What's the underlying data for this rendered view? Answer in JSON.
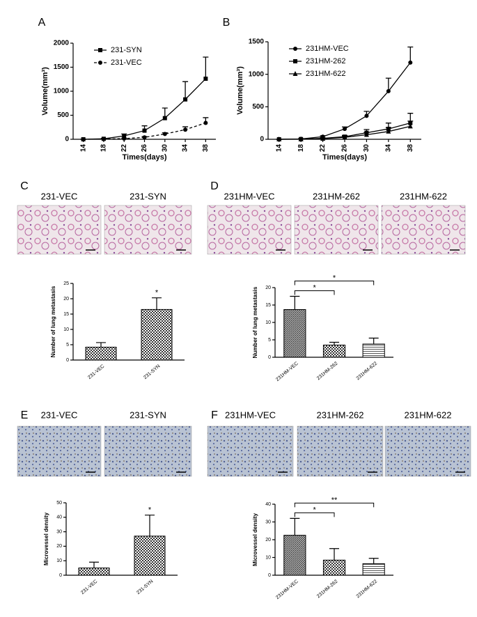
{
  "chart_data": [
    {
      "type": "line",
      "panel": "A",
      "xlabel": "Times(days)",
      "ylabel": "Volume(mm³)",
      "x": [
        14,
        18,
        22,
        26,
        30,
        34,
        38
      ],
      "xlim": [
        12,
        40
      ],
      "xticks": [
        14,
        18,
        22,
        26,
        30,
        34,
        38
      ],
      "ylim": [
        0,
        2000
      ],
      "yticks": [
        0,
        500,
        1000,
        1500,
        2000
      ],
      "legend": "upper left",
      "series": [
        {
          "name": "231-SYN",
          "color": "#000000",
          "marker": "square",
          "dashed": false,
          "values": [
            0,
            10,
            70,
            180,
            440,
            830,
            1260
          ],
          "errors": [
            0,
            10,
            40,
            100,
            210,
            370,
            450
          ]
        },
        {
          "name": "231-VEC",
          "color": "#000000",
          "marker": "circle",
          "dashed": true,
          "values": [
            0,
            5,
            15,
            40,
            110,
            200,
            340
          ],
          "errors": [
            0,
            3,
            8,
            15,
            25,
            60,
            110
          ]
        }
      ]
    },
    {
      "type": "line",
      "panel": "B",
      "xlabel": "Times(days)",
      "ylabel": "Volume(mm³)",
      "x": [
        14,
        18,
        22,
        26,
        30,
        34,
        38
      ],
      "xlim": [
        12,
        40
      ],
      "xticks": [
        14,
        18,
        22,
        26,
        30,
        34,
        38
      ],
      "ylim": [
        0,
        1500
      ],
      "yticks": [
        0,
        500,
        1000,
        1500
      ],
      "legend": "upper left",
      "series": [
        {
          "name": "231HM-VEC",
          "color": "#000000",
          "marker": "circle",
          "dashed": false,
          "values": [
            0,
            5,
            40,
            160,
            360,
            740,
            1180
          ],
          "errors": [
            0,
            5,
            15,
            30,
            70,
            200,
            240
          ]
        },
        {
          "name": "231HM-262",
          "color": "#000000",
          "marker": "square",
          "dashed": false,
          "values": [
            0,
            3,
            15,
            40,
            100,
            160,
            250
          ],
          "errors": [
            0,
            2,
            8,
            20,
            50,
            90,
            150
          ]
        },
        {
          "name": "231HM-622",
          "color": "#000000",
          "marker": "triangle",
          "dashed": false,
          "values": [
            0,
            2,
            10,
            30,
            70,
            120,
            200
          ],
          "errors": [
            0,
            2,
            6,
            15,
            35,
            60,
            80
          ]
        }
      ]
    },
    {
      "type": "bar",
      "panel": "C",
      "image_labels": [
        "231-VEC",
        "231-SYN"
      ],
      "ylabel": "Number of lung metastasis",
      "categories": [
        "231-VEC",
        "231-SYN"
      ],
      "values": [
        4.2,
        16.5
      ],
      "errors": [
        1.5,
        3.8
      ],
      "ylim": [
        0,
        25
      ],
      "yticks": [
        0,
        5,
        10,
        15,
        20,
        25
      ],
      "annotations": [
        {
          "label": "*",
          "over": 1
        }
      ]
    },
    {
      "type": "bar",
      "panel": "D",
      "image_labels": [
        "231HM-VEC",
        "231HM-262",
        "231HM-622"
      ],
      "ylabel": "Number of lung metastasis",
      "categories": [
        "231HM-VEC",
        "231HM-262",
        "231HM-622"
      ],
      "values": [
        13.7,
        3.5,
        3.8
      ],
      "errors": [
        3.8,
        0.8,
        1.7
      ],
      "ylim": [
        0,
        20
      ],
      "yticks": [
        0,
        5,
        10,
        15,
        20
      ],
      "annotations": [
        {
          "label": "*",
          "between": [
            0,
            1
          ]
        },
        {
          "label": "*",
          "between": [
            0,
            2
          ]
        }
      ]
    },
    {
      "type": "bar",
      "panel": "E",
      "image_labels": [
        "231-VEC",
        "231-SYN"
      ],
      "ylabel": "Microvessel density",
      "categories": [
        "231-VEC",
        "231-SYN"
      ],
      "values": [
        5,
        27
      ],
      "errors": [
        4,
        14.5
      ],
      "ylim": [
        0,
        50
      ],
      "yticks": [
        0,
        10,
        20,
        30,
        40,
        50
      ],
      "annotations": [
        {
          "label": "*",
          "over": 1
        }
      ]
    },
    {
      "type": "bar",
      "panel": "F",
      "image_labels": [
        "231HM-VEC",
        "231HM-262",
        "231HM-622"
      ],
      "ylabel": "Microvessel density",
      "categories": [
        "231HM-VEC",
        "231HM-262",
        "231HM-622"
      ],
      "values": [
        22.5,
        8.5,
        6.5
      ],
      "errors": [
        9.5,
        6.5,
        3
      ],
      "ylim": [
        0,
        40
      ],
      "yticks": [
        0,
        10,
        20,
        30,
        40
      ],
      "annotations": [
        {
          "label": "*",
          "between": [
            0,
            1
          ]
        },
        {
          "label": "**",
          "between": [
            0,
            2
          ]
        }
      ]
    }
  ]
}
